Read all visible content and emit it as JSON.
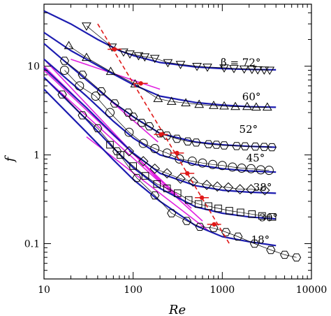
{
  "chart_data": {
    "type": "line",
    "xlabel": "Re",
    "ylabel": "f",
    "xscale": "log",
    "yscale": "log",
    "xlim": [
      10,
      10000
    ],
    "ylim": [
      0.04,
      50
    ],
    "x_ticks": [
      10,
      100,
      1000,
      10000
    ],
    "x_tick_labels": [
      "10",
      "100",
      "1000",
      "10000"
    ],
    "y_ticks": [
      0.1,
      1,
      10
    ],
    "y_tick_labels": [
      "0.1",
      "1",
      "10"
    ],
    "grid": false,
    "series": [
      {
        "label": "β = 72°",
        "marker": "triangle-down",
        "label_at": [
          2700,
          11
        ],
        "fit": [
          [
            10,
            42
          ],
          [
            20,
            30
          ],
          [
            40,
            20
          ],
          [
            70,
            15
          ],
          [
            100,
            13.2
          ],
          [
            200,
            11
          ],
          [
            500,
            9.8
          ],
          [
            1000,
            9.4
          ],
          [
            2000,
            9.2
          ],
          [
            4000,
            9.1
          ]
        ],
        "points": [
          [
            30,
            28.5
          ],
          [
            58,
            16.5
          ],
          [
            78,
            14.5
          ],
          [
            92,
            13.8
          ],
          [
            115,
            13.2
          ],
          [
            135,
            12.8
          ],
          [
            175,
            12.3
          ],
          [
            245,
            11.0
          ],
          [
            340,
            10.5
          ],
          [
            520,
            10.0
          ],
          [
            680,
            9.8
          ],
          [
            1050,
            9.6
          ],
          [
            1350,
            9.45
          ],
          [
            1760,
            9.35
          ],
          [
            2150,
            9.25
          ],
          [
            2500,
            9.15
          ],
          [
            2950,
            9.1
          ],
          [
            3400,
            9.05
          ]
        ]
      },
      {
        "label": "60°",
        "marker": "triangle-up",
        "label_at": [
          2700,
          4.5
        ],
        "fit": [
          [
            10,
            24
          ],
          [
            20,
            15
          ],
          [
            50,
            9
          ],
          [
            100,
            6.2
          ],
          [
            200,
            4.6
          ],
          [
            500,
            3.9
          ],
          [
            1000,
            3.65
          ],
          [
            2000,
            3.5
          ],
          [
            4000,
            3.45
          ]
        ],
        "points": [
          [
            19,
            17
          ],
          [
            30,
            12.5
          ],
          [
            56,
            8.7
          ],
          [
            105,
            6.3
          ],
          [
            190,
            4.3
          ],
          [
            270,
            4.0
          ],
          [
            390,
            3.85
          ],
          [
            550,
            3.7
          ],
          [
            800,
            3.6
          ],
          [
            1050,
            3.55
          ],
          [
            1400,
            3.5
          ],
          [
            1900,
            3.5
          ],
          [
            2400,
            3.45
          ],
          [
            3200,
            3.45
          ]
        ]
      },
      {
        "label": "52°",
        "marker": "hexagon",
        "label_at": [
          2500,
          1.95
        ],
        "fit": [
          [
            10,
            18
          ],
          [
            30,
            7
          ],
          [
            60,
            3.9
          ],
          [
            100,
            2.7
          ],
          [
            200,
            1.75
          ],
          [
            500,
            1.4
          ],
          [
            1000,
            1.3
          ],
          [
            2000,
            1.25
          ],
          [
            4000,
            1.22
          ]
        ],
        "points": [
          [
            17,
            11.5
          ],
          [
            27,
            8.0
          ],
          [
            44,
            5.2
          ],
          [
            62,
            3.8
          ],
          [
            88,
            3.0
          ],
          [
            100,
            2.7
          ],
          [
            125,
            2.3
          ],
          [
            152,
            2.1
          ],
          [
            200,
            1.75
          ],
          [
            240,
            1.65
          ],
          [
            310,
            1.52
          ],
          [
            410,
            1.42
          ],
          [
            510,
            1.38
          ],
          [
            700,
            1.32
          ],
          [
            860,
            1.3
          ],
          [
            1050,
            1.28
          ],
          [
            1450,
            1.26
          ],
          [
            1800,
            1.25
          ],
          [
            2350,
            1.24
          ],
          [
            2950,
            1.23
          ],
          [
            3600,
            1.22
          ]
        ]
      },
      {
        "label": "45°",
        "marker": "circle",
        "label_at": [
          3000,
          0.92
        ],
        "fit": [
          [
            10,
            12
          ],
          [
            30,
            4.6
          ],
          [
            60,
            2.4
          ],
          [
            100,
            1.55
          ],
          [
            200,
            1.0
          ],
          [
            500,
            0.78
          ],
          [
            1000,
            0.7
          ],
          [
            2000,
            0.66
          ],
          [
            4000,
            0.64
          ]
        ],
        "points": [
          [
            17,
            9.0
          ],
          [
            25,
            6.0
          ],
          [
            38,
            4.6
          ],
          [
            55,
            3.0
          ],
          [
            90,
            1.8
          ],
          [
            130,
            1.35
          ],
          [
            175,
            1.18
          ],
          [
            240,
            1.05
          ],
          [
            330,
            0.9
          ],
          [
            460,
            0.85
          ],
          [
            600,
            0.81
          ],
          [
            780,
            0.78
          ],
          [
            1000,
            0.76
          ],
          [
            1300,
            0.73
          ],
          [
            1650,
            0.71
          ],
          [
            2100,
            0.7
          ],
          [
            2700,
            0.68
          ],
          [
            3350,
            0.67
          ]
        ]
      },
      {
        "label": "38°",
        "marker": "diamond",
        "label_at": [
          3600,
          0.43
        ],
        "fit": [
          [
            10,
            9.5
          ],
          [
            30,
            3.4
          ],
          [
            60,
            1.7
          ],
          [
            100,
            1.05
          ],
          [
            200,
            0.62
          ],
          [
            500,
            0.45
          ],
          [
            1000,
            0.4
          ],
          [
            2000,
            0.38
          ],
          [
            4000,
            0.37
          ]
        ],
        "points": [
          [
            90,
            1.1
          ],
          [
            130,
            0.85
          ],
          [
            175,
            0.7
          ],
          [
            240,
            0.62
          ],
          [
            340,
            0.54
          ],
          [
            470,
            0.5
          ],
          [
            670,
            0.46
          ],
          [
            880,
            0.44
          ],
          [
            1170,
            0.43
          ],
          [
            1580,
            0.41
          ],
          [
            2100,
            0.41
          ],
          [
            3000,
            0.4
          ]
        ]
      },
      {
        "label": "30°",
        "marker": "square",
        "label_at": [
          4200,
          0.195
        ],
        "fit": [
          [
            10,
            7.5
          ],
          [
            30,
            2.5
          ],
          [
            60,
            1.2
          ],
          [
            100,
            0.72
          ],
          [
            200,
            0.42
          ],
          [
            500,
            0.26
          ],
          [
            1000,
            0.22
          ],
          [
            2000,
            0.2
          ],
          [
            4000,
            0.19
          ]
        ],
        "points": [
          [
            55,
            1.3
          ],
          [
            72,
            1.0
          ],
          [
            100,
            0.75
          ],
          [
            137,
            0.58
          ],
          [
            185,
            0.47
          ],
          [
            240,
            0.42
          ],
          [
            315,
            0.37
          ],
          [
            420,
            0.31
          ],
          [
            540,
            0.28
          ],
          [
            700,
            0.265
          ],
          [
            900,
            0.25
          ],
          [
            1200,
            0.235
          ],
          [
            1600,
            0.225
          ],
          [
            2150,
            0.215
          ],
          [
            2800,
            0.205
          ],
          [
            3650,
            0.2
          ]
        ]
      },
      {
        "label": "18°",
        "marker": "hexagon",
        "label_at": [
          3400,
          0.11
        ],
        "fit": [
          [
            10,
            5.5
          ],
          [
            30,
            1.8
          ],
          [
            60,
            0.88
          ],
          [
            100,
            0.53
          ],
          [
            200,
            0.3
          ],
          [
            500,
            0.16
          ],
          [
            1000,
            0.12
          ],
          [
            2000,
            0.105
          ],
          [
            4000,
            0.095
          ]
        ],
        "points": [
          [
            16,
            4.8
          ],
          [
            27,
            2.8
          ],
          [
            40,
            2.0
          ],
          [
            66,
            1.1
          ],
          [
            110,
            0.55
          ],
          [
            175,
            0.35
          ],
          [
            270,
            0.22
          ],
          [
            400,
            0.18
          ],
          [
            560,
            0.155
          ],
          [
            800,
            0.15
          ],
          [
            1100,
            0.135
          ],
          [
            1500,
            0.12
          ],
          [
            2300,
            0.1
          ],
          [
            3500,
            0.085
          ],
          [
            5000,
            0.075
          ],
          [
            6800,
            0.07
          ]
        ]
      }
    ],
    "laminar_lines": [
      [
        [
          20,
          12
        ],
        [
          200,
          5.5
        ]
      ],
      [
        [
          20,
          10
        ],
        [
          190,
          1.4
        ]
      ],
      [
        [
          10,
          12
        ],
        [
          200,
          0.5
        ]
      ],
      [
        [
          10,
          10
        ],
        [
          300,
          0.35
        ]
      ],
      [
        [
          10,
          9
        ],
        [
          450,
          0.25
        ]
      ],
      [
        [
          10,
          7.5
        ],
        [
          600,
          0.18
        ]
      ],
      [
        [
          30,
          1.6
        ],
        [
          700,
          0.14
        ]
      ]
    ],
    "transition_line": [
      [
        40,
        30
      ],
      [
        1200,
        0.1
      ]
    ],
    "transition_points": [
      [
        62,
        15.5
      ],
      [
        122,
        6.4
      ],
      [
        205,
        1.7
      ],
      [
        310,
        1.05
      ],
      [
        405,
        0.62
      ],
      [
        590,
        0.33
      ],
      [
        810,
        0.165
      ]
    ],
    "colors": {
      "fit": "#1c1cb0",
      "laminar": "#e020e0",
      "transition": "#e01818",
      "marker": "#000000"
    }
  }
}
